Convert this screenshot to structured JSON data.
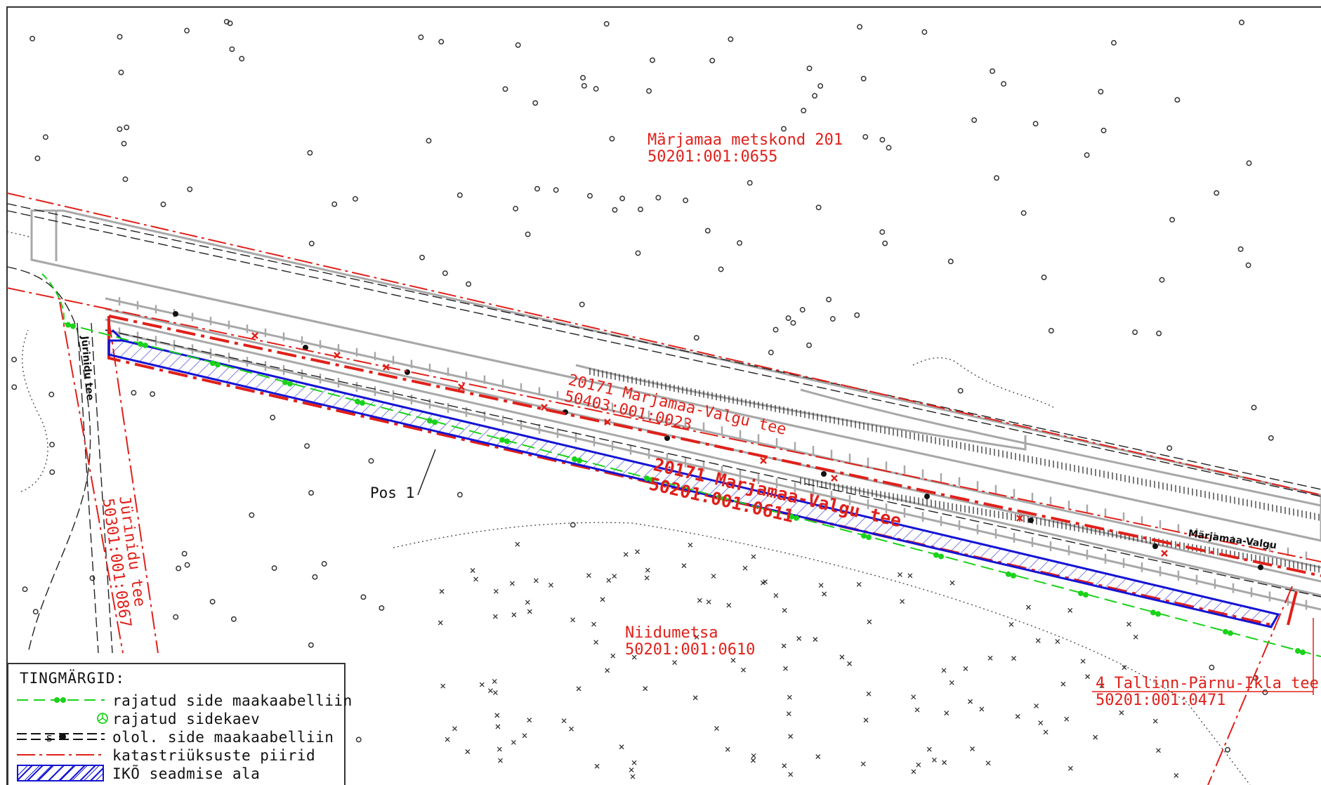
{
  "colors": {
    "parcel_line": "#e0201a",
    "new_cable": "#19d219",
    "ikoarea": "#1414d4",
    "road": "#a8a8a8",
    "existing_cable": "#222222",
    "tree_symbols": "#333333"
  },
  "parcels": {
    "metskond_name": "Märjamaa metskond 201",
    "metskond_id": "50201:001:0655",
    "valgu_north_name": "20171 Marjamaa-Valgu tee",
    "valgu_north_id": "50403:001:0023",
    "valgu_main_name": "20171 Marjamaa-Valgu tee",
    "valgu_main_id": "50201:001:0611",
    "niidumetsa_name": "Niidumetsa",
    "niidumetsa_id": "50201:001:0610",
    "tallinn_name": "4 Tallinn-Pärnu-Ikla tee",
    "tallinn_id": "50201:001:0471",
    "jurinidu_parcel": "Jürinidu tee",
    "jurinidu_parcel_id": "50301:001:0867"
  },
  "road_labels": {
    "jurinidu_road": "Jürinidu tee",
    "marjamaa_valgu_road": "Märjamaa-Valgu"
  },
  "position_label": "Pos 1",
  "legend": {
    "title": "TINGMÄRGID:",
    "items": [
      {
        "icon": "new-cable-line-icon",
        "label": "rajatud side maakaabelliin"
      },
      {
        "icon": "manhole-icon",
        "label": "rajatud sidekaev"
      },
      {
        "icon": "existing-cable-line-icon",
        "label": "olol. side maakaabelliin"
      },
      {
        "icon": "parcel-boundary-icon",
        "label": "katastriüksuste piirid"
      },
      {
        "icon": "hatched-area-icon",
        "label": "IKÕ seadmise ala"
      }
    ]
  }
}
